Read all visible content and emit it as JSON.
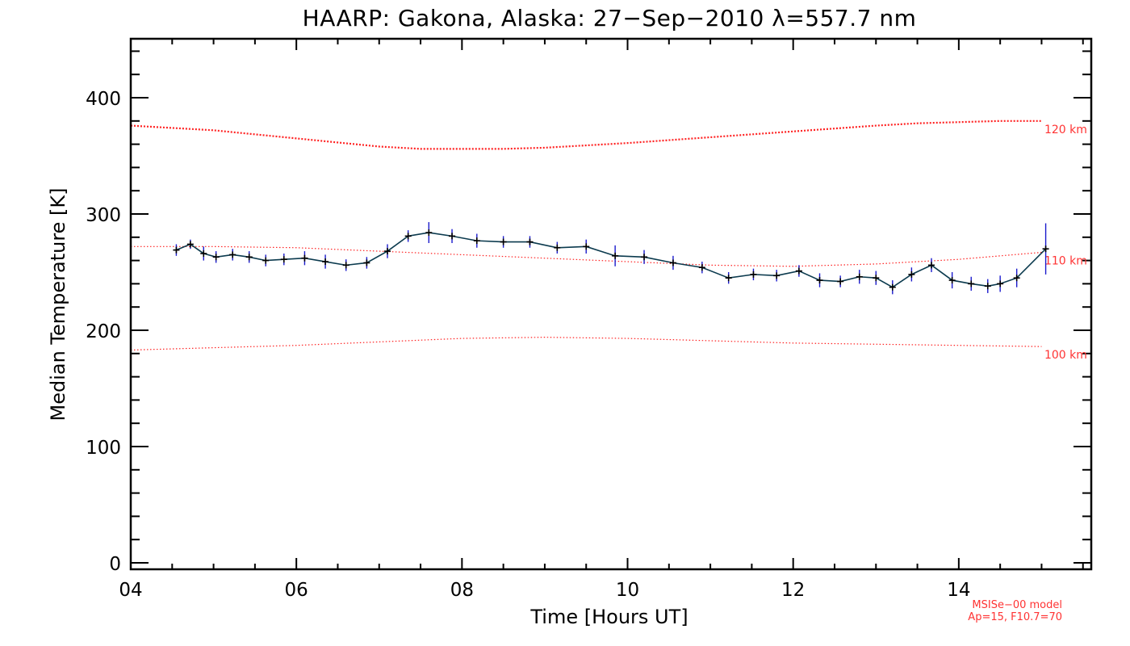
{
  "chart_data": {
    "type": "line",
    "title": "HAARP: Gakona,  Alaska: 27−Sep−2010 λ=557.7 nm",
    "xlabel": "Time [Hours UT]",
    "ylabel": "Median Temperature [K]",
    "xlim": [
      4,
      15.6
    ],
    "ylim": [
      0,
      450
    ],
    "x_ticks": [
      4,
      6,
      8,
      10,
      12,
      14
    ],
    "x_tick_labels": [
      "04",
      "06",
      "08",
      "10",
      "12",
      "14"
    ],
    "y_ticks": [
      0,
      100,
      200,
      300,
      400
    ],
    "y_tick_labels": [
      "0",
      "100",
      "200",
      "300",
      "400"
    ],
    "grid": false,
    "series": [
      {
        "color": "#0b3a4e",
        "error_color": "#1a1acc",
        "x": [
          4.55,
          4.72,
          4.88,
          5.03,
          5.23,
          5.43,
          5.63,
          5.85,
          6.1,
          6.35,
          6.6,
          6.85,
          7.1,
          7.35,
          7.6,
          7.88,
          8.18,
          8.5,
          8.82,
          9.15,
          9.5,
          9.85,
          10.2,
          10.55,
          10.9,
          11.22,
          11.52,
          11.8,
          12.07,
          12.32,
          12.57,
          12.8,
          13.0,
          13.2,
          13.43,
          13.67,
          13.92,
          14.15,
          14.35,
          14.5,
          14.7,
          15.05
        ],
        "y": [
          269,
          274,
          266,
          263,
          265,
          263,
          260,
          261,
          262,
          259,
          256,
          258,
          268,
          281,
          284,
          281,
          277,
          276,
          276,
          271,
          272,
          264,
          263,
          258,
          254,
          245,
          248,
          247,
          251,
          243,
          242,
          246,
          245,
          237,
          248,
          256,
          243,
          240,
          238,
          240,
          245,
          270
        ],
        "yerr": [
          5,
          4,
          6,
          5,
          5,
          5,
          5,
          5,
          6,
          6,
          5,
          5,
          6,
          5,
          9,
          6,
          6,
          5,
          5,
          5,
          6,
          9,
          6,
          6,
          5,
          5,
          5,
          5,
          5,
          6,
          5,
          6,
          6,
          6,
          6,
          6,
          7,
          6,
          6,
          7,
          8,
          22
        ]
      }
    ],
    "model_curves": [
      {
        "label": "120 km",
        "color": "#ff2222",
        "x": [
          4.0,
          5.0,
          6.0,
          7.0,
          7.5,
          8.0,
          8.5,
          9.0,
          9.5,
          10.0,
          11.0,
          12.0,
          13.0,
          13.5,
          14.0,
          14.5,
          15.0
        ],
        "y": [
          376,
          372,
          365,
          358,
          356,
          356,
          356,
          357,
          359,
          361,
          366,
          371,
          376,
          378,
          379,
          380,
          380
        ]
      },
      {
        "label": "110 km",
        "color": "#ff2222",
        "x": [
          4.0,
          5.0,
          6.0,
          7.0,
          8.0,
          9.0,
          10.0,
          11.0,
          12.0,
          12.5,
          13.0,
          14.0,
          15.0
        ],
        "y": [
          272,
          272,
          271,
          268,
          265,
          262,
          259,
          256,
          255,
          256,
          257,
          261,
          267
        ]
      },
      {
        "label": "100 km",
        "color": "#ff2222",
        "x": [
          4.0,
          5.0,
          6.0,
          7.0,
          8.0,
          9.0,
          10.0,
          11.0,
          12.0,
          13.0,
          14.0,
          15.0
        ],
        "y": [
          183,
          185,
          187,
          190,
          193,
          194,
          193,
          191,
          189,
          188,
          187,
          186
        ]
      }
    ],
    "model_note": [
      "MSISe−00 model",
      "Ap=15, F10.7=70"
    ]
  }
}
